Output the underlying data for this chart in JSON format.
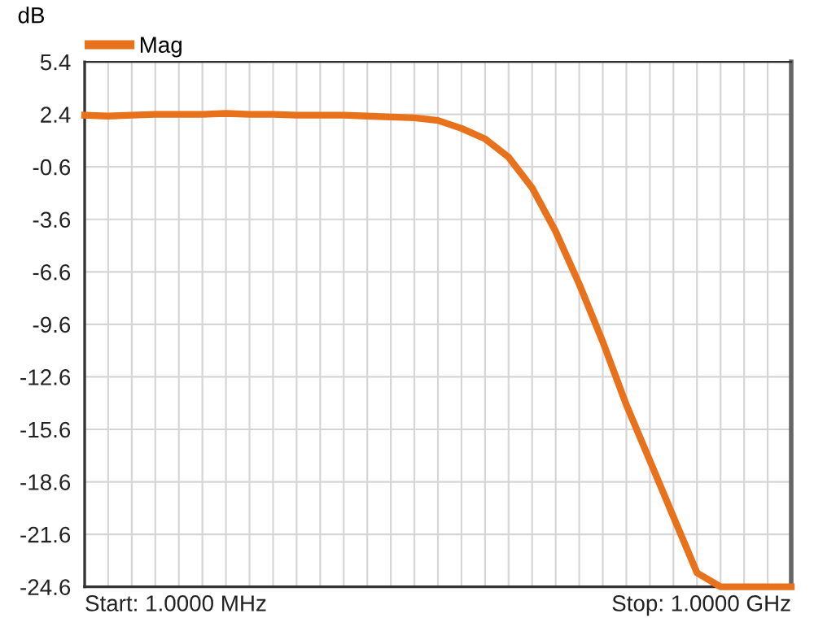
{
  "chart_data": {
    "type": "line",
    "ylabel": "dB",
    "legend": "top left",
    "grid": true,
    "categories": [
      null,
      null,
      null,
      null,
      null,
      null,
      null,
      null,
      null,
      null,
      null,
      null,
      null,
      null,
      null,
      null,
      null,
      null,
      null,
      null,
      null,
      null,
      null,
      null,
      null,
      null,
      null,
      null,
      null,
      null,
      null
    ],
    "series": [
      {
        "name": "Mag",
        "color": "#e8711c",
        "values": [
          2.35,
          2.3,
          2.35,
          2.4,
          2.4,
          2.4,
          2.45,
          2.4,
          2.4,
          2.35,
          2.35,
          2.35,
          2.3,
          2.25,
          2.2,
          2.05,
          1.6,
          1.0,
          -0.05,
          -1.8,
          -4.3,
          -7.3,
          -10.6,
          -14.2,
          -17.4,
          -20.6,
          -23.8,
          -24.6,
          -24.6,
          -24.6,
          -24.6
        ]
      }
    ],
    "ylim": [
      -24.6,
      5.4
    ],
    "yticks": [
      5.4,
      2.4,
      -0.6,
      -3.6,
      -6.6,
      -9.6,
      -12.6,
      -15.6,
      -18.6,
      -21.6,
      -24.6
    ],
    "tick_labels": "y",
    "annotations": [
      "Start: 1.0000 MHz",
      "Stop: 1.0000 GHz"
    ]
  }
}
